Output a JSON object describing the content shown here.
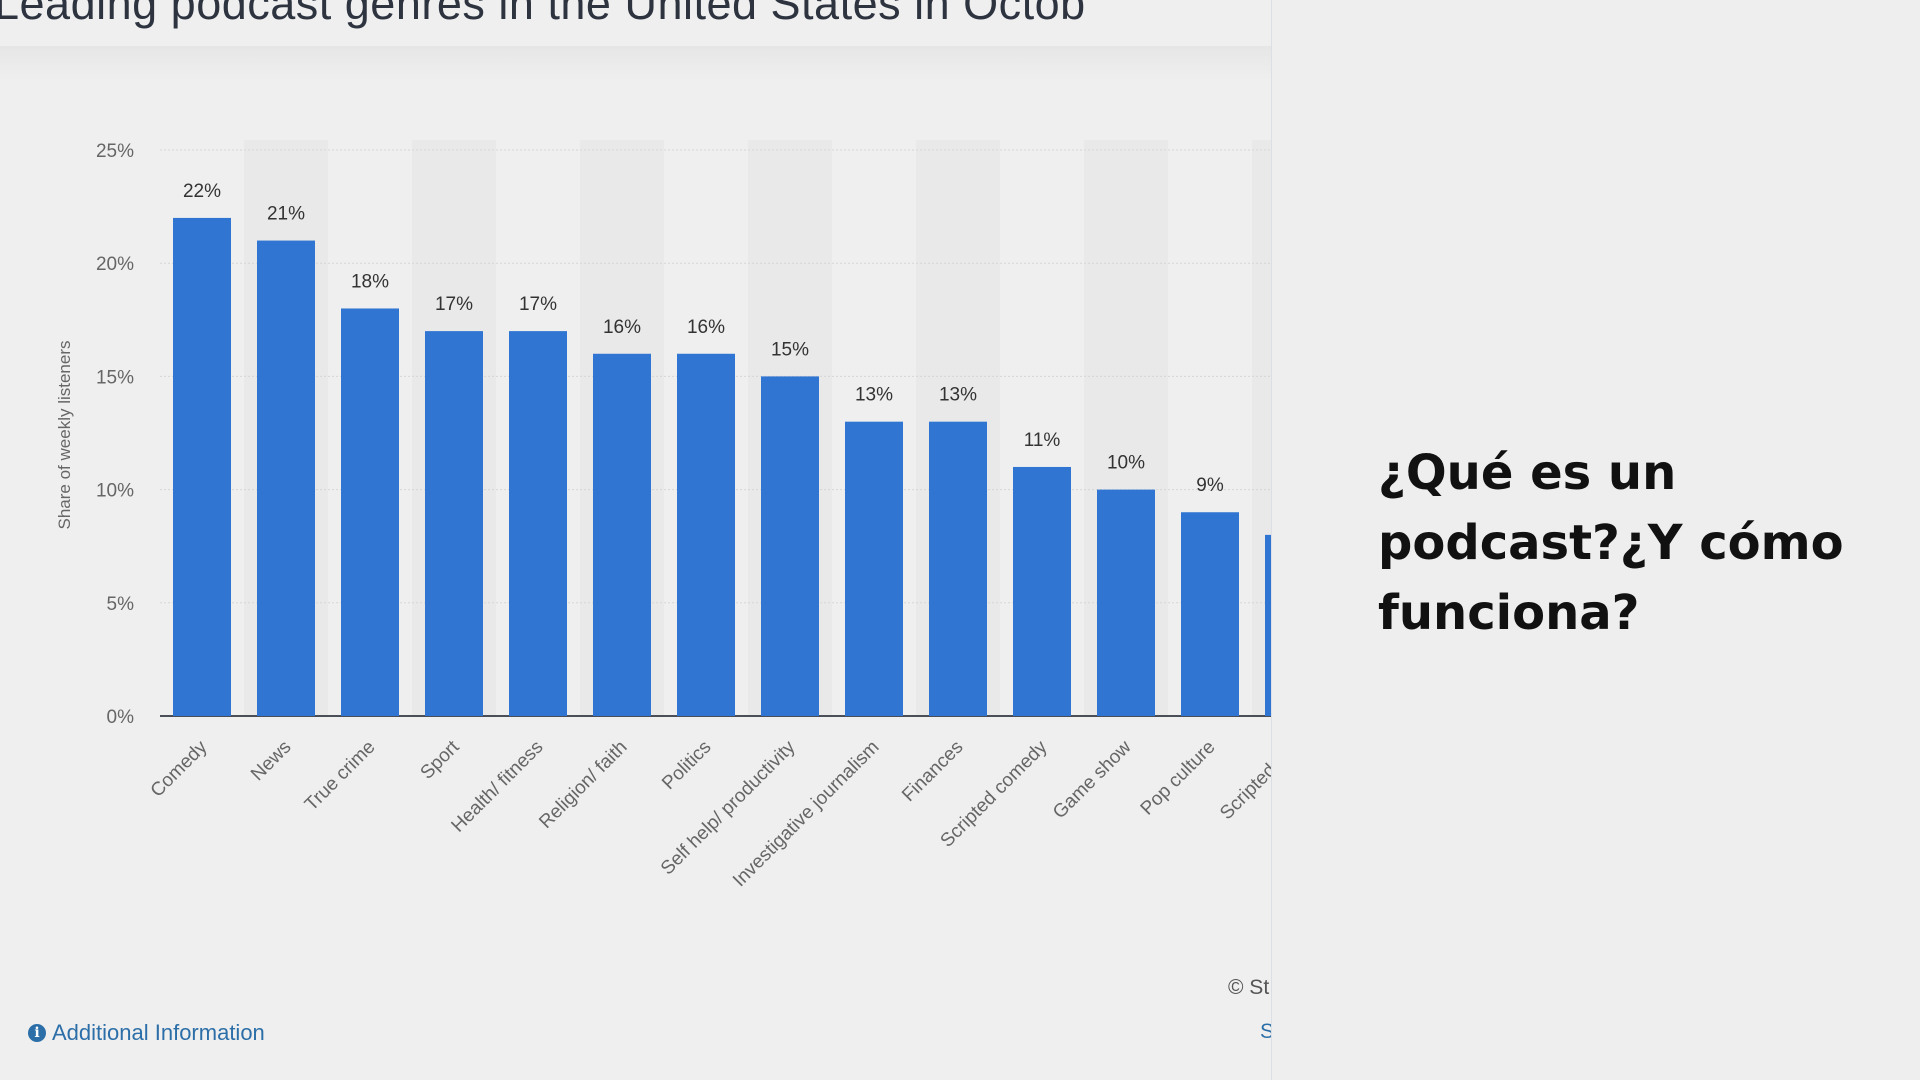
{
  "slide": {
    "heading": "¿Qué es un podcast?¿Y cómo funciona?"
  },
  "chart_data": {
    "type": "bar",
    "title": "Leading podcast genres in the United States in Octob",
    "ylabel": "Share of weekly listeners",
    "xlabel": "",
    "ylim": [
      0,
      25
    ],
    "yticks": [
      "0%",
      "5%",
      "10%",
      "15%",
      "20%",
      "25%"
    ],
    "categories": [
      "Comedy",
      "News",
      "True crime",
      "Sport",
      "Health/ fitness",
      "Religion/ faith",
      "Politics",
      "Self help/ productivity",
      "Investigative journalism",
      "Finances",
      "Scripted comedy",
      "Game show",
      "Pop culture",
      "Scripted dra"
    ],
    "values": [
      22,
      21,
      18,
      17,
      17,
      16,
      16,
      15,
      13,
      13,
      11,
      10,
      9,
      8
    ],
    "data_labels": [
      "22%",
      "21%",
      "18%",
      "17%",
      "17%",
      "16%",
      "16%",
      "15%",
      "13%",
      "13%",
      "11%",
      "10%",
      "9%",
      ""
    ],
    "bar_color": "#2f75d1",
    "grid": true
  },
  "footer": {
    "info_icon": "info-icon",
    "additional_info": "Additional Information",
    "copyright": "© St",
    "source": "S"
  }
}
